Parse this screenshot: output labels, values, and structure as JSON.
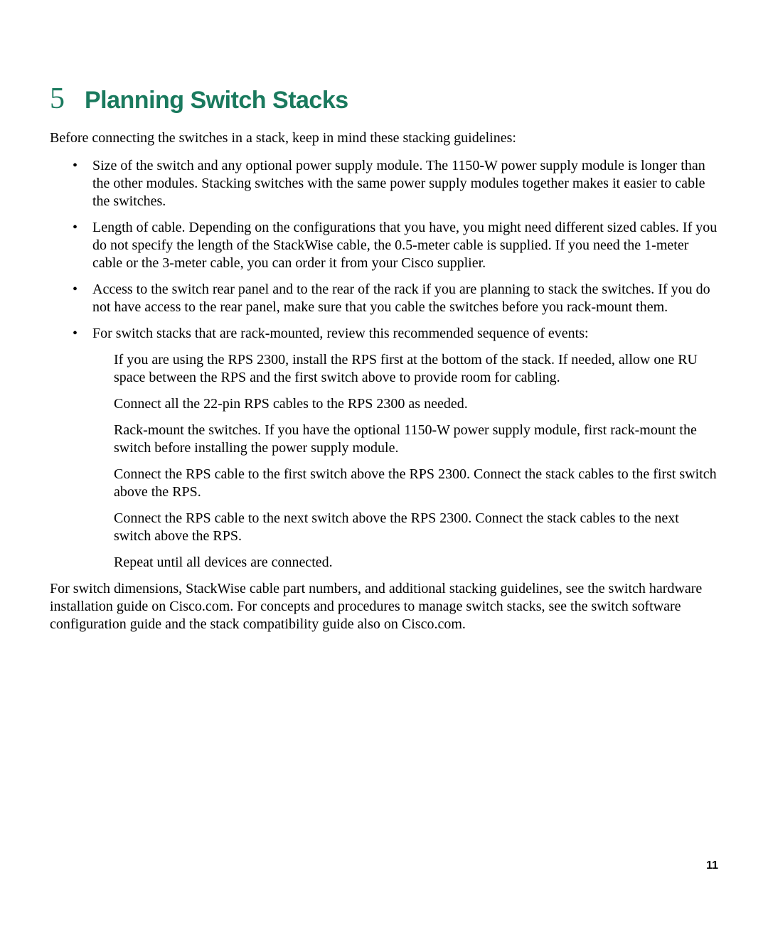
{
  "heading": {
    "number": "5",
    "title": "Planning Switch Stacks"
  },
  "intro": "Before connecting the switches in a stack, keep in mind these stacking guidelines:",
  "bullets": {
    "b1": "Size of the switch and any optional power supply module. The 1150-W power supply module is longer than the other modules. Stacking switches with the same power supply modules together makes it easier to cable the switches.",
    "b2": "Length of cable. Depending on the configurations that you have, you might need different sized cables. If you do not specify the length of the StackWise cable, the 0.5-meter cable is supplied. If you need the 1-meter cable or the 3-meter cable, you can order it from your Cisco supplier.",
    "b3": "Access to the switch rear panel and to the rear of the rack if you are planning to stack the switches. If you do not have access to the rear panel, make sure that you cable the switches before you rack-mount them.",
    "b4": "For switch stacks that are rack-mounted, review this recommended sequence of events:"
  },
  "sub_items": {
    "s1": "If you are using the RPS 2300, install the RPS first at the bottom of the stack. If needed, allow one RU space between the RPS and the first switch above to provide room for cabling.",
    "s2": "Connect all the 22-pin RPS cables to the RPS 2300 as needed.",
    "s3": "Rack-mount the switches. If you have the optional 1150-W power supply module, first rack-mount the switch before installing the power supply module.",
    "s4": "Connect the RPS cable to the first switch above the RPS 2300. Connect the stack cables to the first switch above the RPS.",
    "s5": "Connect the RPS cable to the next switch above the RPS 2300. Connect the stack cables to the next switch above the RPS.",
    "s6": "Repeat until all devices are connected."
  },
  "closing": "For switch dimensions, StackWise cable part numbers, and additional stacking guidelines, see the switch hardware installation guide on Cisco.com. For concepts and procedures to manage switch stacks, see the switch software configuration guide and the stack compatibility guide also on Cisco.com.",
  "page_number": "11",
  "colors": {
    "heading_color": "#1a7a5e",
    "body_text": "#000000",
    "background": "#ffffff"
  },
  "typography": {
    "heading_number_fontsize": 42,
    "heading_title_fontsize": 34,
    "body_fontsize": 20,
    "page_number_fontsize": 16,
    "heading_font": "Arial",
    "body_font": "Georgia"
  }
}
